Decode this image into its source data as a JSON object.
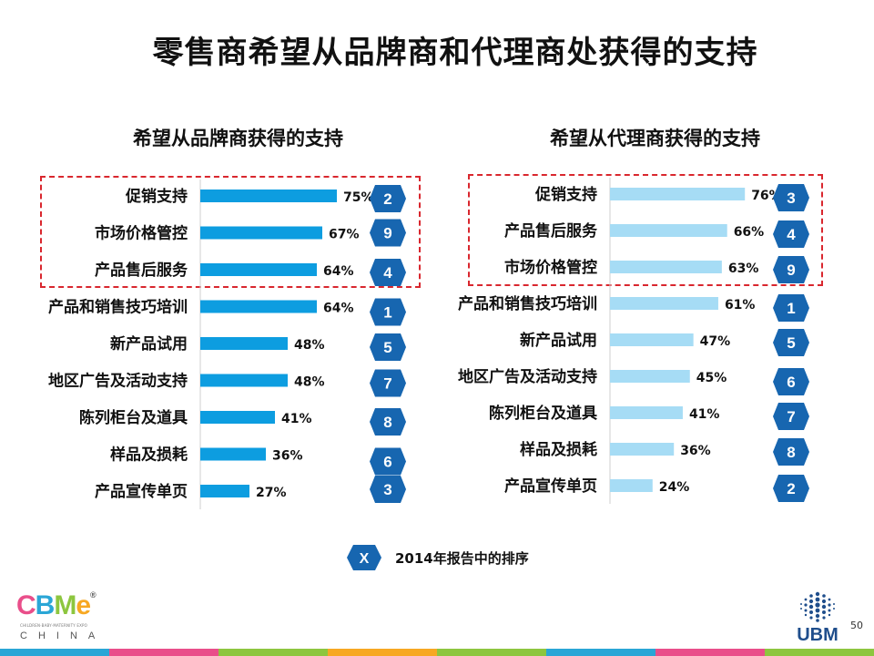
{
  "page": {
    "title": "零售商希望从品牌商和代理商处获得的支持",
    "page_number": "50"
  },
  "chart_data": [
    {
      "type": "bar",
      "orientation": "horizontal",
      "title": "希望从品牌商获得的支持",
      "categories": [
        "促销支持",
        "市场价格管控",
        "产品售后服务",
        "产品和销售技巧培训",
        "新产品试用",
        "地区广告及活动支持",
        "陈列柜台及道具",
        "样品及损耗",
        "产品宣传单页"
      ],
      "values": [
        75,
        67,
        64,
        64,
        48,
        48,
        41,
        36,
        27
      ],
      "value_labels": [
        "75%",
        "67%",
        "64%",
        "64%",
        "48%",
        "48%",
        "41%",
        "36%",
        "27%"
      ],
      "ranks_2014": [
        "2",
        "9",
        "4",
        "1",
        "5",
        "7",
        "8",
        "6",
        "3"
      ],
      "bar_color": "#0d9de0",
      "highlight_top": 3
    },
    {
      "type": "bar",
      "orientation": "horizontal",
      "title": "希望从代理商获得的支持",
      "categories": [
        "促销支持",
        "产品售后服务",
        "市场价格管控",
        "产品和销售技巧培训",
        "新产品试用",
        "地区广告及活动支持",
        "陈列柜台及道具",
        "样品及损耗",
        "产品宣传单页"
      ],
      "values": [
        76,
        66,
        63,
        61,
        47,
        45,
        41,
        36,
        24
      ],
      "value_labels": [
        "76%",
        "66%",
        "63%",
        "61%",
        "47%",
        "45%",
        "41%",
        "36%",
        "24%"
      ],
      "ranks_2014": [
        "3",
        "4",
        "9",
        "1",
        "5",
        "6",
        "7",
        "8",
        "2"
      ],
      "bar_color": "#a6dcf5",
      "highlight_top": 3
    }
  ],
  "legend": {
    "symbol": "X",
    "text": "2014年报告中的排序"
  },
  "logos": {
    "cbme_letters": [
      "C",
      "B",
      "M",
      "e"
    ],
    "cbme_registered": "®",
    "cbme_tagline": "CHILDREN·BABY·MATERNITY EXPO",
    "cbme_sub": "CHINA",
    "ubm": "UBM"
  },
  "colors": {
    "rank_badge": "#1766b0",
    "highlight_border": "#d9272e",
    "cbme_letters": [
      "#e94e8a",
      "#2aa6d6",
      "#8dc63f",
      "#f7a823"
    ],
    "footer": [
      "#2aa6d6",
      "#e94e8a",
      "#8dc63f",
      "#f7a823",
      "#8dc63f",
      "#2aa6d6",
      "#e94e8a",
      "#8dc63f"
    ]
  }
}
